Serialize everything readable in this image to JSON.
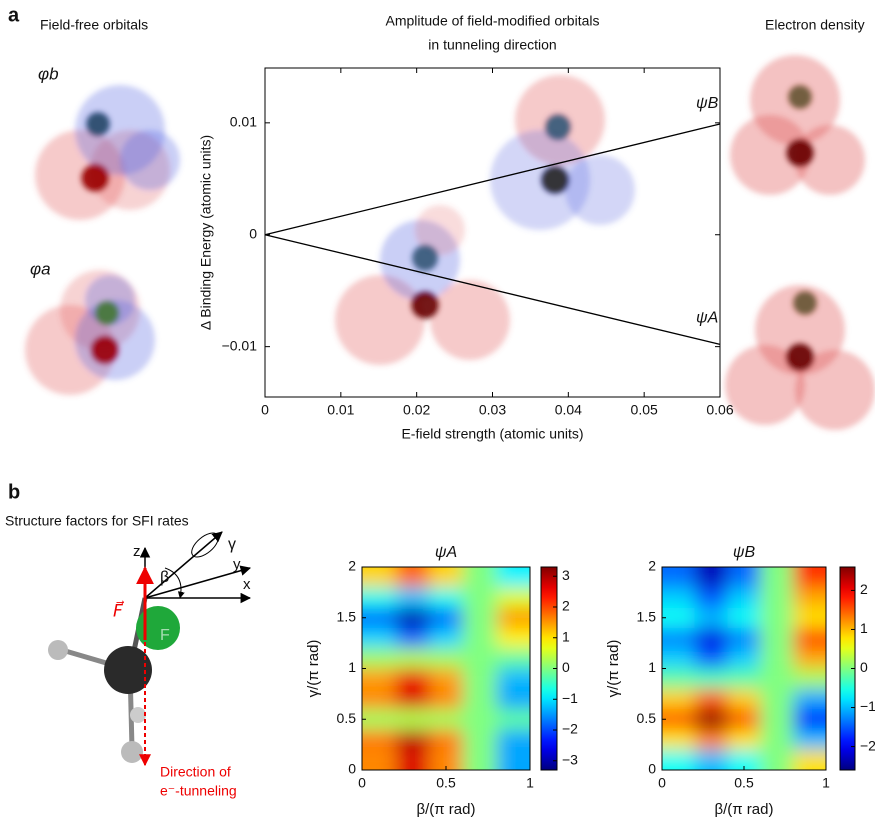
{
  "labels": {
    "panel_a": "a",
    "panel_b": "b",
    "field_free": "Field-free orbitals",
    "phi_b": "φb",
    "phi_a": "φa",
    "electron_density": "Electron density",
    "structure_factors": "Structure factors for SFI rates",
    "axis_z": "z",
    "axis_y": "y",
    "axis_x": "x",
    "angle_beta": "β",
    "angle_gamma": "γ",
    "field": "F⃗",
    "atom_f": "F",
    "direction_1": "Direction of",
    "direction_2": "e⁻-tunneling"
  },
  "chart_data": [
    {
      "type": "line",
      "title": [
        "Amplitude of field-modified orbitals",
        "in tunneling direction"
      ],
      "xlabel": "E-field strength (atomic units)",
      "ylabel": "Δ Binding Energy (atomic units)",
      "x": [
        0,
        0.06
      ],
      "series": [
        {
          "name": "ψB",
          "color": "#000000",
          "values": [
            0,
            0.0099
          ]
        },
        {
          "name": "ψA",
          "color": "#000000",
          "values": [
            0,
            -0.0098
          ]
        }
      ],
      "xlim": [
        0,
        0.06
      ],
      "ylim": [
        -0.0145,
        0.0149
      ],
      "xticks": [
        0,
        0.01,
        0.02,
        0.03,
        0.04,
        0.05,
        0.06
      ],
      "yticks": [
        {
          "value": -0.01,
          "label": "−0.01"
        },
        0,
        0.01
      ]
    },
    {
      "type": "heatmap",
      "title": "ψA",
      "xlabel": "β/(π rad)",
      "ylabel": "γ/(π rad)",
      "x": [
        0.1,
        0.3,
        0.5,
        0.7,
        0.9
      ],
      "y": [
        0.1,
        0.3,
        0.5,
        0.7,
        0.9,
        1.1,
        1.3,
        1.5,
        1.7,
        1.9
      ],
      "values": [
        [
          1.6,
          2.7,
          1.6,
          0,
          -1.4
        ],
        [
          1.7,
          2.9,
          1.7,
          0,
          -1.4
        ],
        [
          0.2,
          0.3,
          0.2,
          0,
          -0.2
        ],
        [
          1.6,
          2.7,
          1.6,
          0,
          -1.4
        ],
        [
          1.5,
          2.6,
          1.5,
          0,
          -1.3
        ],
        [
          0.2,
          0.3,
          0.2,
          0,
          -0.2
        ],
        [
          -1.1,
          -1.8,
          -1.1,
          0,
          0.9
        ],
        [
          -1.8,
          -3.0,
          -1.8,
          0,
          1.5
        ],
        [
          -0.7,
          -1.2,
          -0.7,
          0,
          0.6
        ],
        [
          1.1,
          1.8,
          1.1,
          0,
          -0.9
        ]
      ],
      "xlim": [
        0,
        1
      ],
      "ylim": [
        0,
        2
      ],
      "xticks": [
        0,
        0.5,
        1
      ],
      "yticks": [
        0,
        0.5,
        1,
        1.5,
        2
      ],
      "zlim": [
        -3.3,
        3.3
      ],
      "zticks": [
        {
          "value": -3,
          "label": "−3"
        },
        {
          "value": -2,
          "label": "−2"
        },
        {
          "value": -1,
          "label": "−1"
        },
        0,
        1,
        2,
        3
      ],
      "colormap": "jet"
    },
    {
      "type": "heatmap",
      "title": "ψB",
      "xlabel": "β/(π rad)",
      "ylabel": "γ/(π rad)",
      "x": [
        0.1,
        0.3,
        0.5,
        0.7,
        0.9
      ],
      "y": [
        0.1,
        0.3,
        0.5,
        0.7,
        0.9,
        1.1,
        1.3,
        1.5,
        1.7,
        1.9
      ],
      "values": [
        [
          -0.6,
          -1.0,
          -0.6,
          0,
          0.8
        ],
        [
          0.8,
          1.3,
          0.8,
          0,
          -1.0
        ],
        [
          1.5,
          2.5,
          1.5,
          0,
          -1.9
        ],
        [
          0.9,
          1.5,
          0.9,
          0,
          -1.1
        ],
        [
          -0.2,
          -0.3,
          -0.2,
          0,
          0.2
        ],
        [
          -0.9,
          -1.5,
          -0.9,
          0,
          1.1
        ],
        [
          -1.3,
          -2.1,
          -1.3,
          0,
          1.6
        ],
        [
          -0.6,
          -1.0,
          -0.6,
          0,
          0.8
        ],
        [
          -0.9,
          -1.5,
          -0.9,
          0,
          1.1
        ],
        [
          -1.4,
          -2.3,
          -1.4,
          0,
          1.7
        ]
      ],
      "xlim": [
        0,
        1
      ],
      "ylim": [
        0,
        2
      ],
      "xticks": [
        0,
        0.5,
        1
      ],
      "yticks": [
        0,
        0.5,
        1,
        1.5,
        2
      ],
      "zlim": [
        -2.6,
        2.6
      ],
      "zticks": [
        {
          "value": -2,
          "label": "−2"
        },
        {
          "value": -1,
          "label": "−1"
        },
        0,
        1,
        2
      ],
      "colormap": "jet"
    }
  ]
}
